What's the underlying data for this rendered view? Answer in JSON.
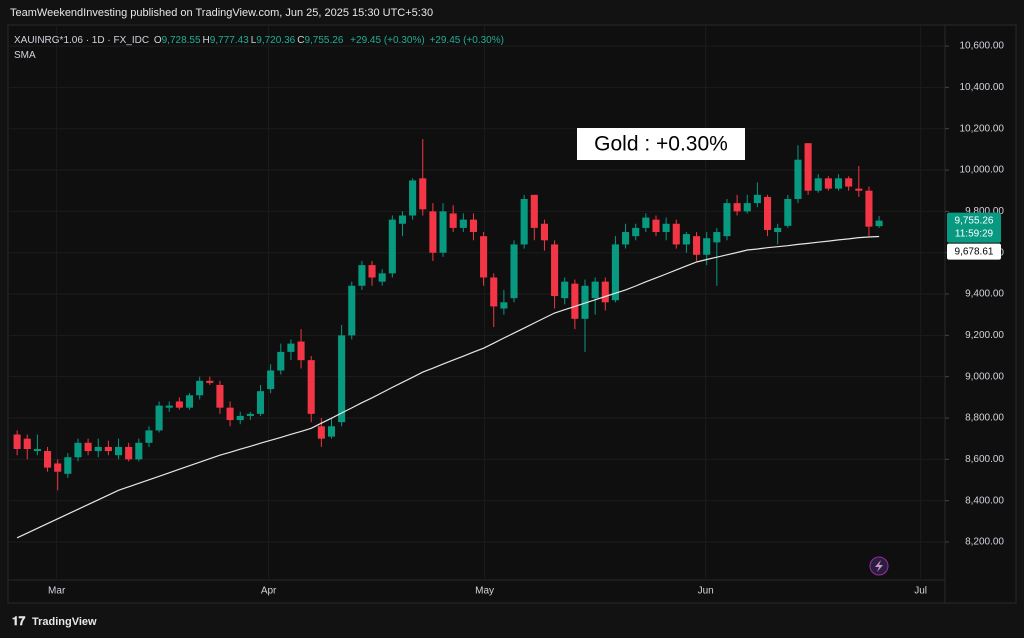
{
  "header": {
    "text": "TeamWeekendInvesting published on TradingView.com, Jun 25, 2025 15:30 UTC+5:30"
  },
  "legend": {
    "symbol": "XAUINRG*1.06 · 1D · FX_IDC",
    "fields": [
      {
        "key": "O",
        "text": "9,728.55"
      },
      {
        "key": "H",
        "text": "9,777.43"
      },
      {
        "key": "L",
        "text": "9,720.36"
      },
      {
        "key": "C",
        "text": "9,755.26"
      }
    ],
    "change": "+29.45 (+0.30%)",
    "change2": "+29.45 (+0.30%)",
    "indicator": "SMA"
  },
  "footer": {
    "brand": "TradingView"
  },
  "chart_data": {
    "type": "candlestick",
    "annotation": "Gold : +0.30%",
    "up_color": "#089981",
    "down_color": "#f23645",
    "open": [
      8720,
      8700,
      8640,
      8640,
      8580,
      8530,
      8610,
      8680,
      8640,
      8660,
      8620,
      8660,
      8600,
      8680,
      8740,
      8850,
      8880,
      8850,
      8910,
      8980,
      8960,
      8850,
      8790,
      8810,
      8820,
      8940,
      9030,
      9120,
      9170,
      9080,
      8760,
      8710,
      8780,
      9200,
      9440,
      9540,
      9460,
      9500,
      9740,
      9780,
      9960,
      9800,
      9600,
      9790,
      9720,
      9760,
      9680,
      9480,
      9330,
      9380,
      9640,
      9880,
      9740,
      9640,
      9380,
      9450,
      9280,
      9380,
      9460,
      9370,
      9640,
      9680,
      9720,
      9760,
      9700,
      9740,
      9640,
      9680,
      9590,
      9650,
      9680,
      9840,
      9800,
      9840,
      9870,
      9700,
      9730,
      9860,
      10130,
      9900,
      9960,
      9910,
      9960,
      9910,
      9900,
      9728.55
    ],
    "high": [
      8740,
      8720,
      8720,
      8660,
      8600,
      8630,
      8700,
      8700,
      8700,
      8690,
      8700,
      8680,
      8700,
      8760,
      8880,
      8880,
      8900,
      8920,
      9000,
      9000,
      8980,
      8880,
      8830,
      8830,
      8960,
      9060,
      9160,
      9180,
      9230,
      9100,
      8800,
      8800,
      9250,
      9460,
      9560,
      9560,
      9520,
      9780,
      9800,
      9960,
      10150,
      9840,
      9840,
      9830,
      9790,
      9790,
      9700,
      9500,
      9420,
      9660,
      9880,
      9880,
      9760,
      9660,
      9480,
      9470,
      9470,
      9480,
      9480,
      9680,
      9740,
      9740,
      9790,
      9780,
      9770,
      9760,
      9700,
      9700,
      9700,
      9720,
      9860,
      9880,
      9880,
      9940,
      9880,
      9740,
      9880,
      10120,
      10130,
      9980,
      9970,
      9980,
      9970,
      10020,
      9920,
      9777.43
    ],
    "low": [
      8620,
      8600,
      8620,
      8540,
      8450,
      8510,
      8590,
      8620,
      8610,
      8620,
      8600,
      8590,
      8590,
      8660,
      8730,
      8830,
      8840,
      8840,
      8890,
      8960,
      8820,
      8760,
      8770,
      8790,
      8810,
      8920,
      9010,
      9080,
      9040,
      8780,
      8660,
      8700,
      8760,
      9180,
      9420,
      9440,
      9440,
      9480,
      9680,
      9760,
      9780,
      9560,
      9580,
      9700,
      9700,
      9660,
      9440,
      9240,
      9300,
      9360,
      9620,
      9660,
      9610,
      9330,
      9350,
      9230,
      9120,
      9300,
      9320,
      9360,
      9620,
      9660,
      9700,
      9680,
      9660,
      9620,
      9600,
      9560,
      9540,
      9440,
      9660,
      9780,
      9790,
      9820,
      9680,
      9640,
      9720,
      9840,
      9880,
      9890,
      9900,
      9900,
      9900,
      9870,
      9680,
      9720.36
    ],
    "close": [
      8650,
      8650,
      8650,
      8560,
      8540,
      8610,
      8680,
      8640,
      8660,
      8640,
      8660,
      8600,
      8680,
      8740,
      8860,
      8860,
      8850,
      8910,
      8980,
      8970,
      8850,
      8790,
      8810,
      8820,
      8930,
      9030,
      9120,
      9160,
      9080,
      8820,
      8700,
      8760,
      9200,
      9440,
      9540,
      9480,
      9500,
      9760,
      9780,
      9950,
      9810,
      9600,
      9800,
      9720,
      9760,
      9700,
      9480,
      9340,
      9360,
      9640,
      9860,
      9720,
      9660,
      9390,
      9460,
      9280,
      9440,
      9460,
      9360,
      9640,
      9700,
      9720,
      9770,
      9700,
      9740,
      9640,
      9690,
      9590,
      9670,
      9700,
      9840,
      9800,
      9840,
      9880,
      9710,
      9720,
      9860,
      10050,
      9900,
      9960,
      9910,
      9960,
      9920,
      9900,
      9726,
      9755.26
    ],
    "sma": {
      "color": "#e6e6e6",
      "values": [
        8220,
        8243,
        8266,
        8289,
        8312,
        8335,
        8358,
        8381,
        8404,
        8427,
        8450,
        8467,
        8484,
        8501,
        8518,
        8535,
        8552,
        8569,
        8586,
        8603,
        8620,
        8634,
        8649,
        8663,
        8678,
        8692,
        8706,
        8721,
        8735,
        8750,
        8775,
        8799,
        8824,
        8849,
        8874,
        8898,
        8923,
        8948,
        8973,
        8997,
        9022,
        9041,
        9061,
        9080,
        9099,
        9119,
        9138,
        9162,
        9187,
        9211,
        9235,
        9260,
        9284,
        9308,
        9324,
        9340,
        9356,
        9372,
        9388,
        9404,
        9420,
        9439,
        9459,
        9478,
        9497,
        9517,
        9536,
        9555,
        9567,
        9578,
        9590,
        9601,
        9613,
        9618,
        9624,
        9629,
        9634,
        9640,
        9645,
        9651,
        9656,
        9662,
        9667,
        9673,
        9676,
        9678.61
      ]
    },
    "last_price_label": "9,755.26",
    "countdown": "11:59:29",
    "sma_label": "9,678.61",
    "ylim": [
      8016,
      10702
    ],
    "yticks": [
      {
        "value": 8200,
        "label": "8,200.00"
      },
      {
        "value": 8400,
        "label": "8,400.00"
      },
      {
        "value": 8600,
        "label": "8,600.00"
      },
      {
        "value": 8800,
        "label": "8,800.00"
      },
      {
        "value": 9000,
        "label": "9,000.00"
      },
      {
        "value": 9200,
        "label": "9,200.00"
      },
      {
        "value": 9400,
        "label": "9,400.00"
      },
      {
        "value": 9600,
        "label": "9,600.00"
      },
      {
        "value": 9800,
        "label": "9,800.00"
      },
      {
        "value": 10000,
        "label": "10,000.00"
      },
      {
        "value": 10200,
        "label": "10,200.00"
      },
      {
        "value": 10400,
        "label": "10,400.00"
      },
      {
        "value": 10600,
        "label": "10,600.00"
      }
    ],
    "xlim": [
      -0.9,
      91.5
    ],
    "xticks": [
      {
        "value": 3.9,
        "label": "Mar"
      },
      {
        "value": 24.8,
        "label": "Apr"
      },
      {
        "value": 46.1,
        "label": "May"
      },
      {
        "value": 67.9,
        "label": "Jun"
      },
      {
        "value": 89.1,
        "label": "Jul"
      }
    ]
  }
}
